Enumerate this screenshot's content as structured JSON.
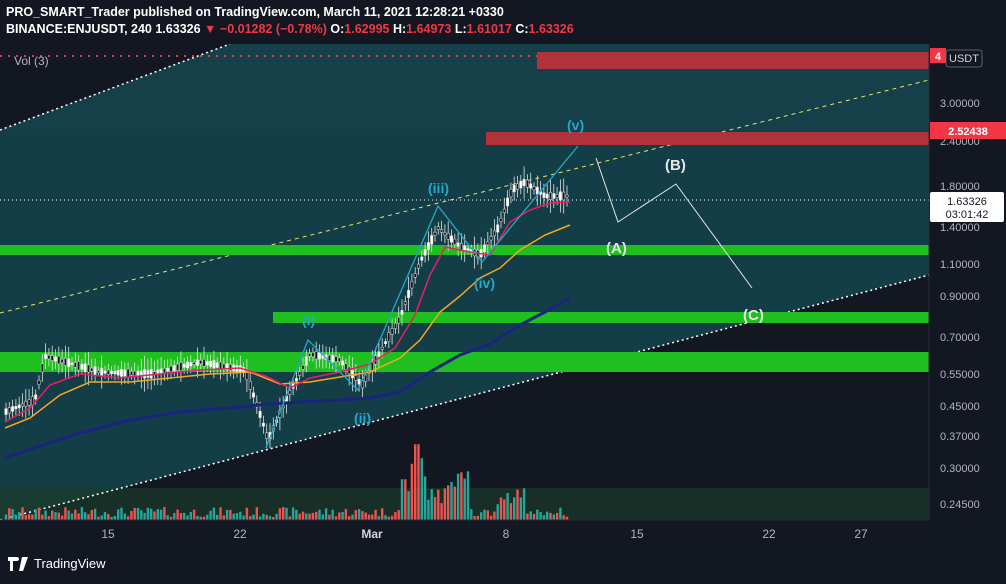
{
  "header": {
    "publisher_line": "PRO_SMART_Trader published on TradingView.com, March 11, 2021 12:28:21 +0330",
    "symbol": "BINANCE:ENJUSDT, 240",
    "last": "1.63326",
    "change": "−0.01282 (−0.78%)",
    "o_label": "O:",
    "o_value": "1.62995",
    "h_label": "H:",
    "h_value": "1.64973",
    "l_label": "L:",
    "l_value": "1.61017",
    "c_label": "C:",
    "c_value": "1.63326"
  },
  "volume_label": "Vol (3)",
  "currency": "USDT",
  "price_axis": {
    "ticks": [
      "3.00000",
      "2.40000",
      "1.80000",
      "1.40000",
      "1.10000",
      "0.90000",
      "0.70000",
      "0.55000",
      "0.45000",
      "0.37000",
      "0.30000",
      "0.24500"
    ],
    "current_price": "1.63326",
    "countdown": "03:01:42",
    "target_label": "2.52438",
    "top_label": "4"
  },
  "time_axis": [
    "15",
    "22",
    "Mar",
    "8",
    "15",
    "22",
    "27"
  ],
  "wave_labels": {
    "i": "(i)",
    "ii": "(ii)",
    "iii": "(iii)",
    "iv": "(iv)",
    "v": "(v)",
    "A": "(A)",
    "B": "(B)",
    "C": "(C)"
  },
  "brand": "TradingView",
  "colors": {
    "background": "#131722",
    "channel": "#1b4c55",
    "red_zone": "#b2323b",
    "green_zone": "#1fbf1f",
    "down": "#f23645",
    "ema_pink": "#e91e63",
    "ema_orange": "#f5a623",
    "ema_blue": "#1a237e",
    "wave": "#26a6c9"
  },
  "chart_data": {
    "type": "candlestick",
    "x_range": [
      "2021-02-08",
      "2021-03-31"
    ],
    "y_scale": "log",
    "y_ticks": [
      3.0,
      2.4,
      1.8,
      1.4,
      1.1,
      0.9,
      0.7,
      0.55,
      0.45,
      0.37,
      0.3,
      0.245
    ],
    "last_price": 1.63326,
    "red_zones": [
      [
        3.4,
        4.0
      ],
      [
        2.4,
        2.6
      ]
    ],
    "green_zones": [
      [
        1.15,
        1.2
      ],
      [
        0.78,
        0.82
      ],
      [
        0.53,
        0.6
      ]
    ]
  }
}
